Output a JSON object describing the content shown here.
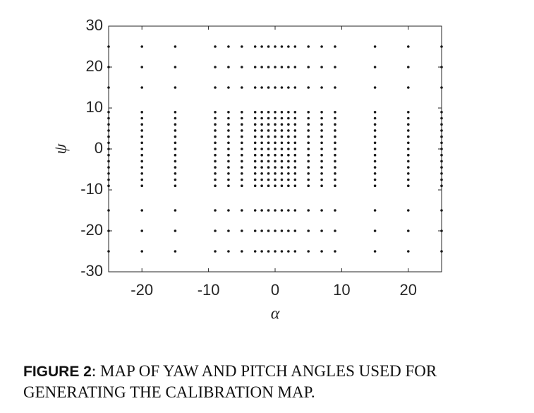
{
  "chart_data": {
    "type": "scatter",
    "x_label": "α",
    "y_label": "ψ",
    "xlim": [
      -25,
      25
    ],
    "ylim": [
      -30,
      30
    ],
    "xticks": [
      -20,
      -10,
      0,
      10,
      20
    ],
    "yticks": [
      -30,
      -20,
      -10,
      0,
      10,
      20,
      30
    ],
    "color": "#1a1a1a",
    "series": [
      {
        "x": [
          -25,
          -25,
          -25,
          -25,
          -25,
          -25,
          -25,
          -25,
          -25,
          -25,
          -25,
          -25,
          -25,
          -25,
          -25,
          -25,
          -25,
          -25,
          -25,
          -20,
          -20,
          -20,
          -20,
          -20,
          -20,
          -20,
          -20,
          -20,
          -20,
          -20,
          -20,
          -20,
          -20,
          -20,
          -20,
          -20,
          -20,
          -20,
          -15,
          -15,
          -15,
          -15,
          -15,
          -15,
          -15,
          -15,
          -15,
          -15,
          -15,
          -15,
          -15,
          -15,
          -15,
          -15,
          -15,
          -15,
          -15,
          -9,
          -9,
          -9,
          -9,
          -9,
          -9,
          -9,
          -9,
          -9,
          -9,
          -9,
          -9,
          -9,
          -9,
          -9,
          -9,
          -9,
          -9,
          -9,
          -7,
          -7,
          -7,
          -7,
          -7,
          -7,
          -7,
          -7,
          -7,
          -7,
          -7,
          -7,
          -7,
          -7,
          -7,
          -7,
          -7,
          -7,
          -7,
          -5,
          -5,
          -5,
          -5,
          -5,
          -5,
          -5,
          -5,
          -5,
          -5,
          -5,
          -5,
          -5,
          -5,
          -5,
          -5,
          -5,
          -5,
          -5,
          -3,
          -3,
          -3,
          -3,
          -3,
          -3,
          -3,
          -3,
          -3,
          -3,
          -3,
          -3,
          -3,
          -3,
          -3,
          -3,
          -3,
          -3,
          -3,
          -2,
          -2,
          -2,
          -2,
          -2,
          -2,
          -2,
          -2,
          -2,
          -2,
          -2,
          -2,
          -2,
          -2,
          -2,
          -2,
          -2,
          -2,
          -2,
          -1,
          -1,
          -1,
          -1,
          -1,
          -1,
          -1,
          -1,
          -1,
          -1,
          -1,
          -1,
          -1,
          -1,
          -1,
          -1,
          -1,
          -1,
          -1,
          0,
          0,
          0,
          0,
          0,
          0,
          0,
          0,
          0,
          0,
          0,
          0,
          0,
          0,
          0,
          0,
          0,
          0,
          0,
          1,
          1,
          1,
          1,
          1,
          1,
          1,
          1,
          1,
          1,
          1,
          1,
          1,
          1,
          1,
          1,
          1,
          1,
          1,
          2,
          2,
          2,
          2,
          2,
          2,
          2,
          2,
          2,
          2,
          2,
          2,
          2,
          2,
          2,
          2,
          2,
          2,
          2,
          3,
          3,
          3,
          3,
          3,
          3,
          3,
          3,
          3,
          3,
          3,
          3,
          3,
          3,
          3,
          3,
          3,
          3,
          3,
          5,
          5,
          5,
          5,
          5,
          5,
          5,
          5,
          5,
          5,
          5,
          5,
          5,
          5,
          5,
          5,
          5,
          5,
          5,
          7,
          7,
          7,
          7,
          7,
          7,
          7,
          7,
          7,
          7,
          7,
          7,
          7,
          7,
          7,
          7,
          7,
          7,
          7,
          9,
          9,
          9,
          9,
          9,
          9,
          9,
          9,
          9,
          9,
          9,
          9,
          9,
          9,
          9,
          9,
          9,
          9,
          9,
          15,
          15,
          15,
          15,
          15,
          15,
          15,
          15,
          15,
          15,
          15,
          15,
          15,
          15,
          15,
          15,
          15,
          15,
          15,
          20,
          20,
          20,
          20,
          20,
          20,
          20,
          20,
          20,
          20,
          20,
          20,
          20,
          20,
          20,
          20,
          20,
          20,
          20,
          25,
          25,
          25,
          25,
          25,
          25,
          25,
          25,
          25,
          25,
          25,
          25,
          25,
          25,
          25,
          25,
          25,
          25,
          25
        ],
        "y": [
          25,
          20,
          15,
          9,
          7.5,
          6,
          4.5,
          3,
          1.5,
          0,
          -1.5,
          -3,
          -4.5,
          -6,
          -7.5,
          -9,
          -15,
          -20,
          -25,
          25,
          20,
          15,
          9,
          7.5,
          6,
          4.5,
          3,
          1.5,
          0,
          -1.5,
          -3,
          -4.5,
          -6,
          -7.5,
          -9,
          -15,
          -20,
          -25,
          25,
          20,
          15,
          9,
          7.5,
          6,
          4.5,
          3,
          1.5,
          0,
          -1.5,
          -3,
          -4.5,
          -6,
          -7.5,
          -9,
          -15,
          -20,
          -25,
          25,
          20,
          15,
          9,
          7.5,
          6,
          4.5,
          3,
          1.5,
          0,
          -1.5,
          -3,
          -4.5,
          -6,
          -7.5,
          -9,
          -15,
          -20,
          -25,
          25,
          20,
          15,
          9,
          7.5,
          6,
          4.5,
          3,
          1.5,
          0,
          -1.5,
          -3,
          -4.5,
          -6,
          -7.5,
          -9,
          -15,
          -20,
          -25,
          25,
          20,
          15,
          9,
          7.5,
          6,
          4.5,
          3,
          1.5,
          0,
          -1.5,
          -3,
          -4.5,
          -6,
          -7.5,
          -9,
          -15,
          -20,
          -25,
          25,
          20,
          15,
          9,
          7.5,
          6,
          4.5,
          3,
          1.5,
          0,
          -1.5,
          -3,
          -4.5,
          -6,
          -7.5,
          -9,
          -15,
          -20,
          -25,
          25,
          20,
          15,
          9,
          7.5,
          6,
          4.5,
          3,
          1.5,
          0,
          -1.5,
          -3,
          -4.5,
          -6,
          -7.5,
          -9,
          -15,
          -20,
          -25,
          25,
          20,
          15,
          9,
          7.5,
          6,
          4.5,
          3,
          1.5,
          0,
          -1.5,
          -3,
          -4.5,
          -6,
          -7.5,
          -9,
          -15,
          -20,
          -25,
          25,
          20,
          15,
          9,
          7.5,
          6,
          4.5,
          3,
          1.5,
          0,
          -1.5,
          -3,
          -4.5,
          -6,
          -7.5,
          -9,
          -15,
          -20,
          -25,
          25,
          20,
          15,
          9,
          7.5,
          6,
          4.5,
          3,
          1.5,
          0,
          -1.5,
          -3,
          -4.5,
          -6,
          -7.5,
          -9,
          -15,
          -20,
          -25,
          25,
          20,
          15,
          9,
          7.5,
          6,
          4.5,
          3,
          1.5,
          0,
          -1.5,
          -3,
          -4.5,
          -6,
          -7.5,
          -9,
          -15,
          -20,
          -25,
          25,
          20,
          15,
          9,
          7.5,
          6,
          4.5,
          3,
          1.5,
          0,
          -1.5,
          -3,
          -4.5,
          -6,
          -7.5,
          -9,
          -15,
          -20,
          -25,
          25,
          20,
          15,
          9,
          7.5,
          6,
          4.5,
          3,
          1.5,
          0,
          -1.5,
          -3,
          -4.5,
          -6,
          -7.5,
          -9,
          -15,
          -20,
          -25,
          25,
          20,
          15,
          9,
          7.5,
          6,
          4.5,
          3,
          1.5,
          0,
          -1.5,
          -3,
          -4.5,
          -6,
          -7.5,
          -9,
          -15,
          -20,
          -25,
          25,
          20,
          15,
          9,
          7.5,
          6,
          4.5,
          3,
          1.5,
          0,
          -1.5,
          -3,
          -4.5,
          -6,
          -7.5,
          -9,
          -15,
          -20,
          -25,
          25,
          20,
          15,
          9,
          7.5,
          6,
          4.5,
          3,
          1.5,
          0,
          -1.5,
          -3,
          -4.5,
          -6,
          -7.5,
          -9,
          -15,
          -20,
          -25,
          25,
          20,
          15,
          9,
          7.5,
          6,
          4.5,
          3,
          1.5,
          0,
          -1.5,
          -3,
          -4.5,
          -6,
          -7.5,
          -9,
          -15,
          -20,
          -25,
          25,
          20,
          15,
          9,
          7.5,
          6,
          4.5,
          3,
          1.5,
          0,
          -1.5,
          -3,
          -4.5,
          -6,
          -7.5,
          -9,
          -15,
          -20,
          -25
        ]
      }
    ]
  },
  "caption": {
    "label": "FIGURE 2",
    "text": ": MAP OF YAW AND PITCH ANGLES USED FOR GENERATING THE CALIBRATION MAP."
  }
}
